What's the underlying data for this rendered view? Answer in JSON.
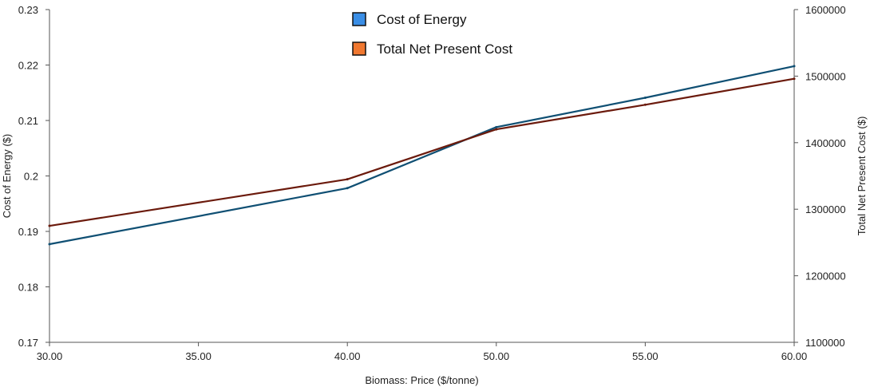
{
  "chart_data": {
    "type": "line",
    "xlabel": "Biomass: Price ($/tonne)",
    "x_ticks": [
      "30.00",
      "35.00",
      "40.00",
      "50.00",
      "55.00",
      "60.00"
    ],
    "y_left": {
      "label": "Cost of Energy ($)",
      "range": [
        0.17,
        0.23
      ],
      "ticks": [
        "0.17",
        "0.18",
        "0.19",
        "0.2",
        "0.21",
        "0.22",
        "0.23"
      ]
    },
    "y_right": {
      "label": "Total Net Present Cost ($)",
      "range": [
        1100000,
        1600000
      ],
      "ticks": [
        "1100000",
        "1200000",
        "1300000",
        "1400000",
        "1500000",
        "1600000"
      ]
    },
    "legend": [
      {
        "name": "Cost of Energy",
        "swatch_color": "#3a8ee6"
      },
      {
        "name": "Total Net Present Cost",
        "swatch_color": "#f07830"
      }
    ],
    "series": [
      {
        "name": "Cost of Energy",
        "axis": "left",
        "line_color": "#0f4f73",
        "points": [
          {
            "x_index": 0,
            "y": 0.1877
          },
          {
            "x_index": 2,
            "y": 0.1978
          },
          {
            "x_index": 3,
            "y": 0.2088
          },
          {
            "x_index": 4,
            "y": 0.2141
          },
          {
            "x_index": 5,
            "y": 0.2198
          }
        ]
      },
      {
        "name": "Total Net Present Cost",
        "axis": "right",
        "line_color": "#6b1a0c",
        "points": [
          {
            "x_index": 0,
            "y": 1275000
          },
          {
            "x_index": 2,
            "y": 1345000
          },
          {
            "x_index": 3,
            "y": 1420000
          },
          {
            "x_index": 4,
            "y": 1457000
          },
          {
            "x_index": 5,
            "y": 1496000
          }
        ]
      }
    ]
  }
}
